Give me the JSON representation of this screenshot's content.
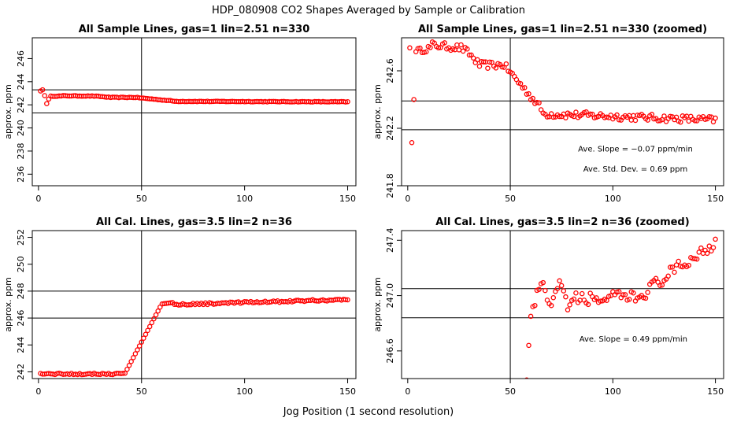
{
  "figure": {
    "title": "HDP_080908  CO2 Shapes Averaged by Sample or Calibration",
    "xlabel": "Jog Position (1 second resolution)"
  },
  "chart_data": [
    {
      "type": "scatter",
      "title": "All Sample Lines, gas=1 lin=2.51 n=330",
      "ylabel": "approx. ppm",
      "xlim": [
        -3,
        154
      ],
      "ylim": [
        235,
        247.8
      ],
      "xticks": [
        0,
        50,
        100,
        150
      ],
      "yticks": [
        236,
        238,
        240,
        242,
        244,
        246
      ],
      "vline": 50,
      "hlines": [
        243.3,
        241.3
      ],
      "annotations": [],
      "series": [
        {
          "name": "sample",
          "color": "#ff0000",
          "points": []
        }
      ]
    },
    {
      "type": "scatter",
      "title": "All Sample Lines, gas=1 lin=2.51 n=330 (zoomed)",
      "ylabel": "approx. ppm",
      "xlim": [
        -3,
        154
      ],
      "ylim": [
        241.8,
        242.83
      ],
      "xticks": [
        0,
        50,
        100,
        150
      ],
      "yticks": [
        241.8,
        242.2,
        242.6
      ],
      "ytick_labels": [
        "241.8",
        "242.2",
        "242.6"
      ],
      "vline": 50,
      "hlines": [
        242.39,
        242.19
      ],
      "annotations": [
        {
          "text": "Ave. Slope =  −0.07  ppm/min",
          "x": 111,
          "y": 242.06
        },
        {
          "text": "Ave. Std. Dev. =  0.69  ppm",
          "x": 111,
          "y": 241.92
        }
      ],
      "series": [
        {
          "name": "sample",
          "color": "#ff0000",
          "points": []
        }
      ]
    },
    {
      "type": "scatter",
      "title": "All Cal. Lines, gas=3.5 lin=2 n=36",
      "ylabel": "approx. ppm",
      "xlim": [
        -3,
        154
      ],
      "ylim": [
        241.5,
        252.5
      ],
      "xticks": [
        0,
        50,
        100,
        150
      ],
      "yticks": [
        242,
        244,
        246,
        248,
        250,
        252
      ],
      "vline": 50,
      "hlines": [
        248.0,
        246.0
      ],
      "annotations": [],
      "series": [
        {
          "name": "cal",
          "color": "#ff0000",
          "points": []
        }
      ]
    },
    {
      "type": "scatter",
      "title": "All Cal. Lines, gas=3.5 lin=2 n=36 (zoomed)",
      "ylabel": "approx. ppm",
      "xlim": [
        -3,
        154
      ],
      "ylim": [
        246.4,
        247.47
      ],
      "xticks": [
        0,
        50,
        100,
        150
      ],
      "yticks": [
        246.6,
        247.0,
        247.4
      ],
      "ytick_labels": [
        "246.6",
        "247.0",
        "247.4"
      ],
      "vline": 50,
      "hlines": [
        247.05,
        246.84
      ],
      "annotations": [
        {
          "text": "Ave. Slope =  0.49  ppm/min",
          "x": 110,
          "y": 246.69
        }
      ],
      "series": [
        {
          "name": "cal",
          "color": "#ff0000",
          "points": []
        }
      ]
    }
  ]
}
